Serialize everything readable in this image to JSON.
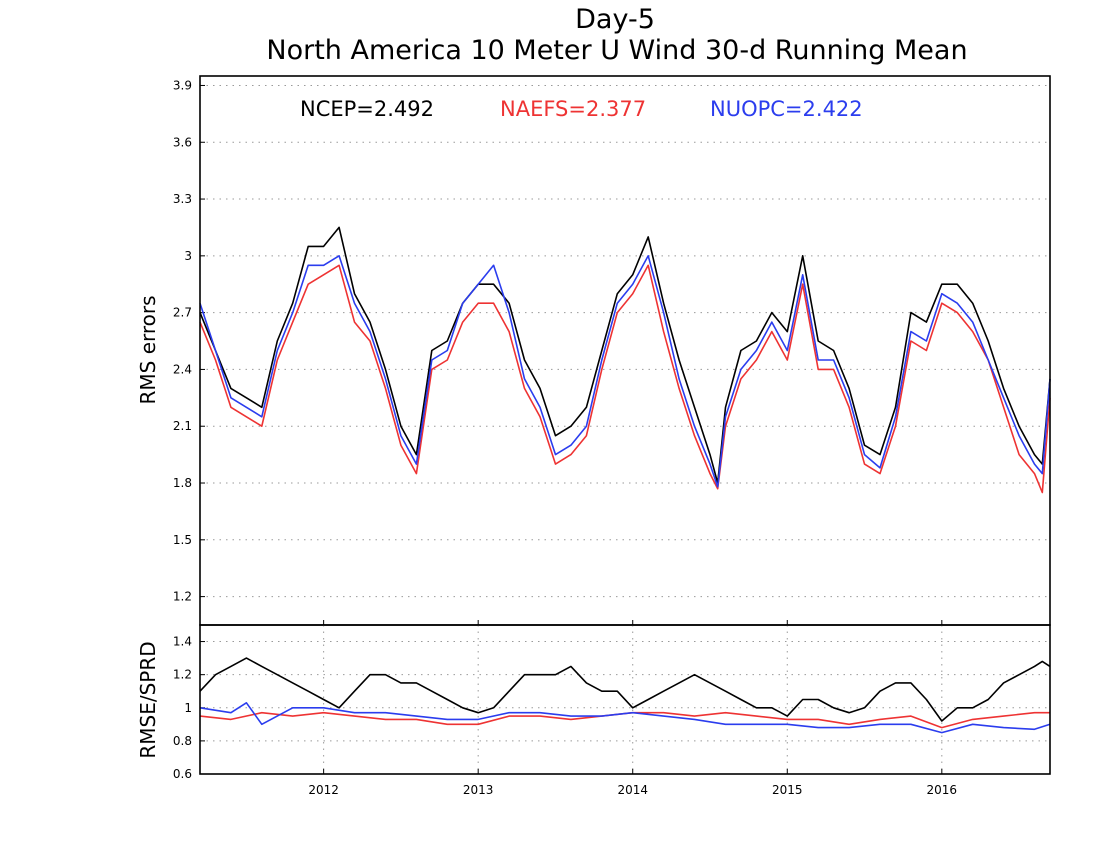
{
  "titles": [
    "Day-5",
    "North America 10 Meter U Wind 30-d Running Mean"
  ],
  "chart_data": [
    {
      "type": "line",
      "ylabel": "RMS errors",
      "ylim": [
        1.05,
        3.95
      ],
      "yticks": [
        1.2,
        1.5,
        1.8,
        2.1,
        2.4,
        2.7,
        3,
        3.3,
        3.6,
        3.9
      ],
      "ytick_labels": [
        "1.2",
        "1.5",
        "1.8",
        "2.1",
        "2.4",
        "2.7",
        "3",
        "3.3",
        "3.6",
        "3.9"
      ],
      "xlim": [
        2011.2,
        2016.7
      ],
      "xticks": [
        2012,
        2013,
        2014,
        2015,
        2016
      ],
      "grid": true,
      "legend_position": "top",
      "series": [
        {
          "legend": "NCEP=2.492",
          "color": "#000000",
          "x": [
            2011.2,
            2011.3,
            2011.4,
            2011.5,
            2011.6,
            2011.7,
            2011.8,
            2011.9,
            2012.0,
            2012.1,
            2012.2,
            2012.3,
            2012.4,
            2012.5,
            2012.6,
            2012.7,
            2012.8,
            2012.9,
            2013.0,
            2013.1,
            2013.2,
            2013.3,
            2013.4,
            2013.5,
            2013.6,
            2013.7,
            2013.8,
            2013.9,
            2014.0,
            2014.1,
            2014.2,
            2014.3,
            2014.4,
            2014.5,
            2014.55,
            2014.6,
            2014.7,
            2014.8,
            2014.9,
            2015.0,
            2015.1,
            2015.2,
            2015.3,
            2015.4,
            2015.5,
            2015.6,
            2015.7,
            2015.8,
            2015.9,
            2016.0,
            2016.1,
            2016.2,
            2016.3,
            2016.4,
            2016.5,
            2016.6,
            2016.65,
            2016.7
          ],
          "y": [
            2.7,
            2.5,
            2.3,
            2.25,
            2.2,
            2.55,
            2.75,
            3.05,
            3.05,
            3.15,
            2.8,
            2.65,
            2.4,
            2.1,
            1.95,
            2.5,
            2.55,
            2.75,
            2.85,
            2.85,
            2.75,
            2.45,
            2.3,
            2.05,
            2.1,
            2.2,
            2.5,
            2.8,
            2.9,
            3.1,
            2.75,
            2.45,
            2.2,
            1.95,
            1.8,
            2.2,
            2.5,
            2.55,
            2.7,
            2.6,
            3.0,
            2.55,
            2.5,
            2.3,
            2.0,
            1.95,
            2.2,
            2.7,
            2.65,
            2.85,
            2.85,
            2.75,
            2.55,
            2.3,
            2.1,
            1.95,
            1.9,
            2.35
          ]
        },
        {
          "legend": "NAEFS=2.377",
          "color": "#ee3333",
          "x": [
            2011.2,
            2011.3,
            2011.4,
            2011.5,
            2011.6,
            2011.7,
            2011.8,
            2011.9,
            2012.0,
            2012.1,
            2012.2,
            2012.3,
            2012.4,
            2012.5,
            2012.6,
            2012.7,
            2012.8,
            2012.9,
            2013.0,
            2013.1,
            2013.2,
            2013.3,
            2013.4,
            2013.5,
            2013.6,
            2013.7,
            2013.8,
            2013.9,
            2014.0,
            2014.1,
            2014.2,
            2014.3,
            2014.4,
            2014.5,
            2014.55,
            2014.6,
            2014.7,
            2014.8,
            2014.9,
            2015.0,
            2015.1,
            2015.2,
            2015.3,
            2015.4,
            2015.5,
            2015.6,
            2015.7,
            2015.8,
            2015.9,
            2016.0,
            2016.1,
            2016.2,
            2016.3,
            2016.4,
            2016.5,
            2016.6,
            2016.65,
            2016.7
          ],
          "y": [
            2.65,
            2.45,
            2.2,
            2.15,
            2.1,
            2.45,
            2.65,
            2.85,
            2.9,
            2.95,
            2.65,
            2.55,
            2.3,
            2.0,
            1.85,
            2.4,
            2.45,
            2.65,
            2.75,
            2.75,
            2.6,
            2.3,
            2.15,
            1.9,
            1.95,
            2.05,
            2.4,
            2.7,
            2.8,
            2.95,
            2.6,
            2.3,
            2.05,
            1.85,
            1.77,
            2.1,
            2.35,
            2.45,
            2.6,
            2.45,
            2.85,
            2.4,
            2.4,
            2.2,
            1.9,
            1.85,
            2.1,
            2.55,
            2.5,
            2.75,
            2.7,
            2.6,
            2.45,
            2.2,
            1.95,
            1.85,
            1.75,
            2.25
          ]
        },
        {
          "legend": "NUOPC=2.422",
          "color": "#2b3dee",
          "x": [
            2011.2,
            2011.3,
            2011.4,
            2011.5,
            2011.6,
            2011.7,
            2011.8,
            2011.9,
            2012.0,
            2012.1,
            2012.2,
            2012.3,
            2012.4,
            2012.5,
            2012.6,
            2012.7,
            2012.8,
            2012.9,
            2013.0,
            2013.1,
            2013.2,
            2013.3,
            2013.4,
            2013.5,
            2013.6,
            2013.7,
            2013.8,
            2013.9,
            2014.0,
            2014.1,
            2014.2,
            2014.3,
            2014.4,
            2014.5,
            2014.55,
            2014.6,
            2014.7,
            2014.8,
            2014.9,
            2015.0,
            2015.1,
            2015.2,
            2015.3,
            2015.4,
            2015.5,
            2015.6,
            2015.7,
            2015.8,
            2015.9,
            2016.0,
            2016.1,
            2016.2,
            2016.3,
            2016.4,
            2016.5,
            2016.6,
            2016.65,
            2016.7
          ],
          "y": [
            2.75,
            2.5,
            2.25,
            2.2,
            2.15,
            2.5,
            2.7,
            2.95,
            2.95,
            3.0,
            2.75,
            2.6,
            2.35,
            2.05,
            1.9,
            2.45,
            2.5,
            2.75,
            2.85,
            2.95,
            2.7,
            2.35,
            2.2,
            1.95,
            2.0,
            2.1,
            2.45,
            2.75,
            2.85,
            3.0,
            2.7,
            2.35,
            2.1,
            1.9,
            1.78,
            2.15,
            2.4,
            2.5,
            2.65,
            2.5,
            2.9,
            2.45,
            2.45,
            2.25,
            1.95,
            1.88,
            2.15,
            2.6,
            2.55,
            2.8,
            2.75,
            2.65,
            2.45,
            2.25,
            2.05,
            1.9,
            1.85,
            2.35
          ]
        }
      ]
    },
    {
      "type": "line",
      "ylabel": "RMSE/SPRD",
      "ylim": [
        0.6,
        1.5
      ],
      "yticks": [
        0.6,
        0.8,
        1.0,
        1.2,
        1.4
      ],
      "ytick_labels": [
        "0.6",
        "0.8",
        "1",
        "1.2",
        "1.4"
      ],
      "xlim": [
        2011.2,
        2016.7
      ],
      "xticks": [
        2012,
        2013,
        2014,
        2015,
        2016
      ],
      "xtick_labels": [
        "2012",
        "2013",
        "2014",
        "2015",
        "2016"
      ],
      "grid": true,
      "series": [
        {
          "color": "#000000",
          "x": [
            2011.2,
            2011.3,
            2011.4,
            2011.5,
            2011.6,
            2011.7,
            2011.8,
            2011.9,
            2012.0,
            2012.1,
            2012.2,
            2012.3,
            2012.4,
            2012.5,
            2012.6,
            2012.7,
            2012.8,
            2012.9,
            2013.0,
            2013.1,
            2013.2,
            2013.3,
            2013.4,
            2013.5,
            2013.6,
            2013.7,
            2013.8,
            2013.9,
            2014.0,
            2014.1,
            2014.2,
            2014.3,
            2014.4,
            2014.5,
            2014.6,
            2014.7,
            2014.8,
            2014.9,
            2015.0,
            2015.1,
            2015.2,
            2015.3,
            2015.4,
            2015.5,
            2015.6,
            2015.7,
            2015.8,
            2015.9,
            2016.0,
            2016.1,
            2016.2,
            2016.3,
            2016.4,
            2016.5,
            2016.6,
            2016.65,
            2016.7
          ],
          "y": [
            1.1,
            1.2,
            1.25,
            1.3,
            1.25,
            1.2,
            1.15,
            1.1,
            1.05,
            1.0,
            1.1,
            1.2,
            1.2,
            1.15,
            1.15,
            1.1,
            1.05,
            1.0,
            0.97,
            1.0,
            1.1,
            1.2,
            1.2,
            1.2,
            1.25,
            1.15,
            1.1,
            1.1,
            1.0,
            1.05,
            1.1,
            1.15,
            1.2,
            1.15,
            1.1,
            1.05,
            1.0,
            1.0,
            0.95,
            1.05,
            1.05,
            1.0,
            0.97,
            1.0,
            1.1,
            1.15,
            1.15,
            1.05,
            0.92,
            1.0,
            1.0,
            1.05,
            1.15,
            1.2,
            1.25,
            1.28,
            1.25
          ]
        },
        {
          "color": "#ee3333",
          "x": [
            2011.2,
            2011.4,
            2011.6,
            2011.8,
            2012.0,
            2012.2,
            2012.4,
            2012.6,
            2012.8,
            2013.0,
            2013.2,
            2013.4,
            2013.6,
            2013.8,
            2014.0,
            2014.2,
            2014.4,
            2014.6,
            2014.8,
            2015.0,
            2015.2,
            2015.4,
            2015.6,
            2015.8,
            2016.0,
            2016.2,
            2016.4,
            2016.6,
            2016.7
          ],
          "y": [
            0.95,
            0.93,
            0.97,
            0.95,
            0.97,
            0.95,
            0.93,
            0.93,
            0.9,
            0.9,
            0.95,
            0.95,
            0.93,
            0.95,
            0.97,
            0.97,
            0.95,
            0.97,
            0.95,
            0.93,
            0.93,
            0.9,
            0.93,
            0.95,
            0.88,
            0.93,
            0.95,
            0.97,
            0.97
          ]
        },
        {
          "color": "#2b3dee",
          "x": [
            2011.2,
            2011.4,
            2011.5,
            2011.6,
            2011.8,
            2012.0,
            2012.2,
            2012.4,
            2012.6,
            2012.8,
            2013.0,
            2013.2,
            2013.4,
            2013.6,
            2013.8,
            2014.0,
            2014.2,
            2014.4,
            2014.6,
            2014.8,
            2015.0,
            2015.2,
            2015.4,
            2015.6,
            2015.8,
            2016.0,
            2016.2,
            2016.4,
            2016.6,
            2016.7
          ],
          "y": [
            1.0,
            0.97,
            1.03,
            0.9,
            1.0,
            1.0,
            0.97,
            0.97,
            0.95,
            0.93,
            0.93,
            0.97,
            0.97,
            0.95,
            0.95,
            0.97,
            0.95,
            0.93,
            0.9,
            0.9,
            0.9,
            0.88,
            0.88,
            0.9,
            0.9,
            0.85,
            0.9,
            0.88,
            0.87,
            0.9
          ]
        }
      ]
    }
  ]
}
